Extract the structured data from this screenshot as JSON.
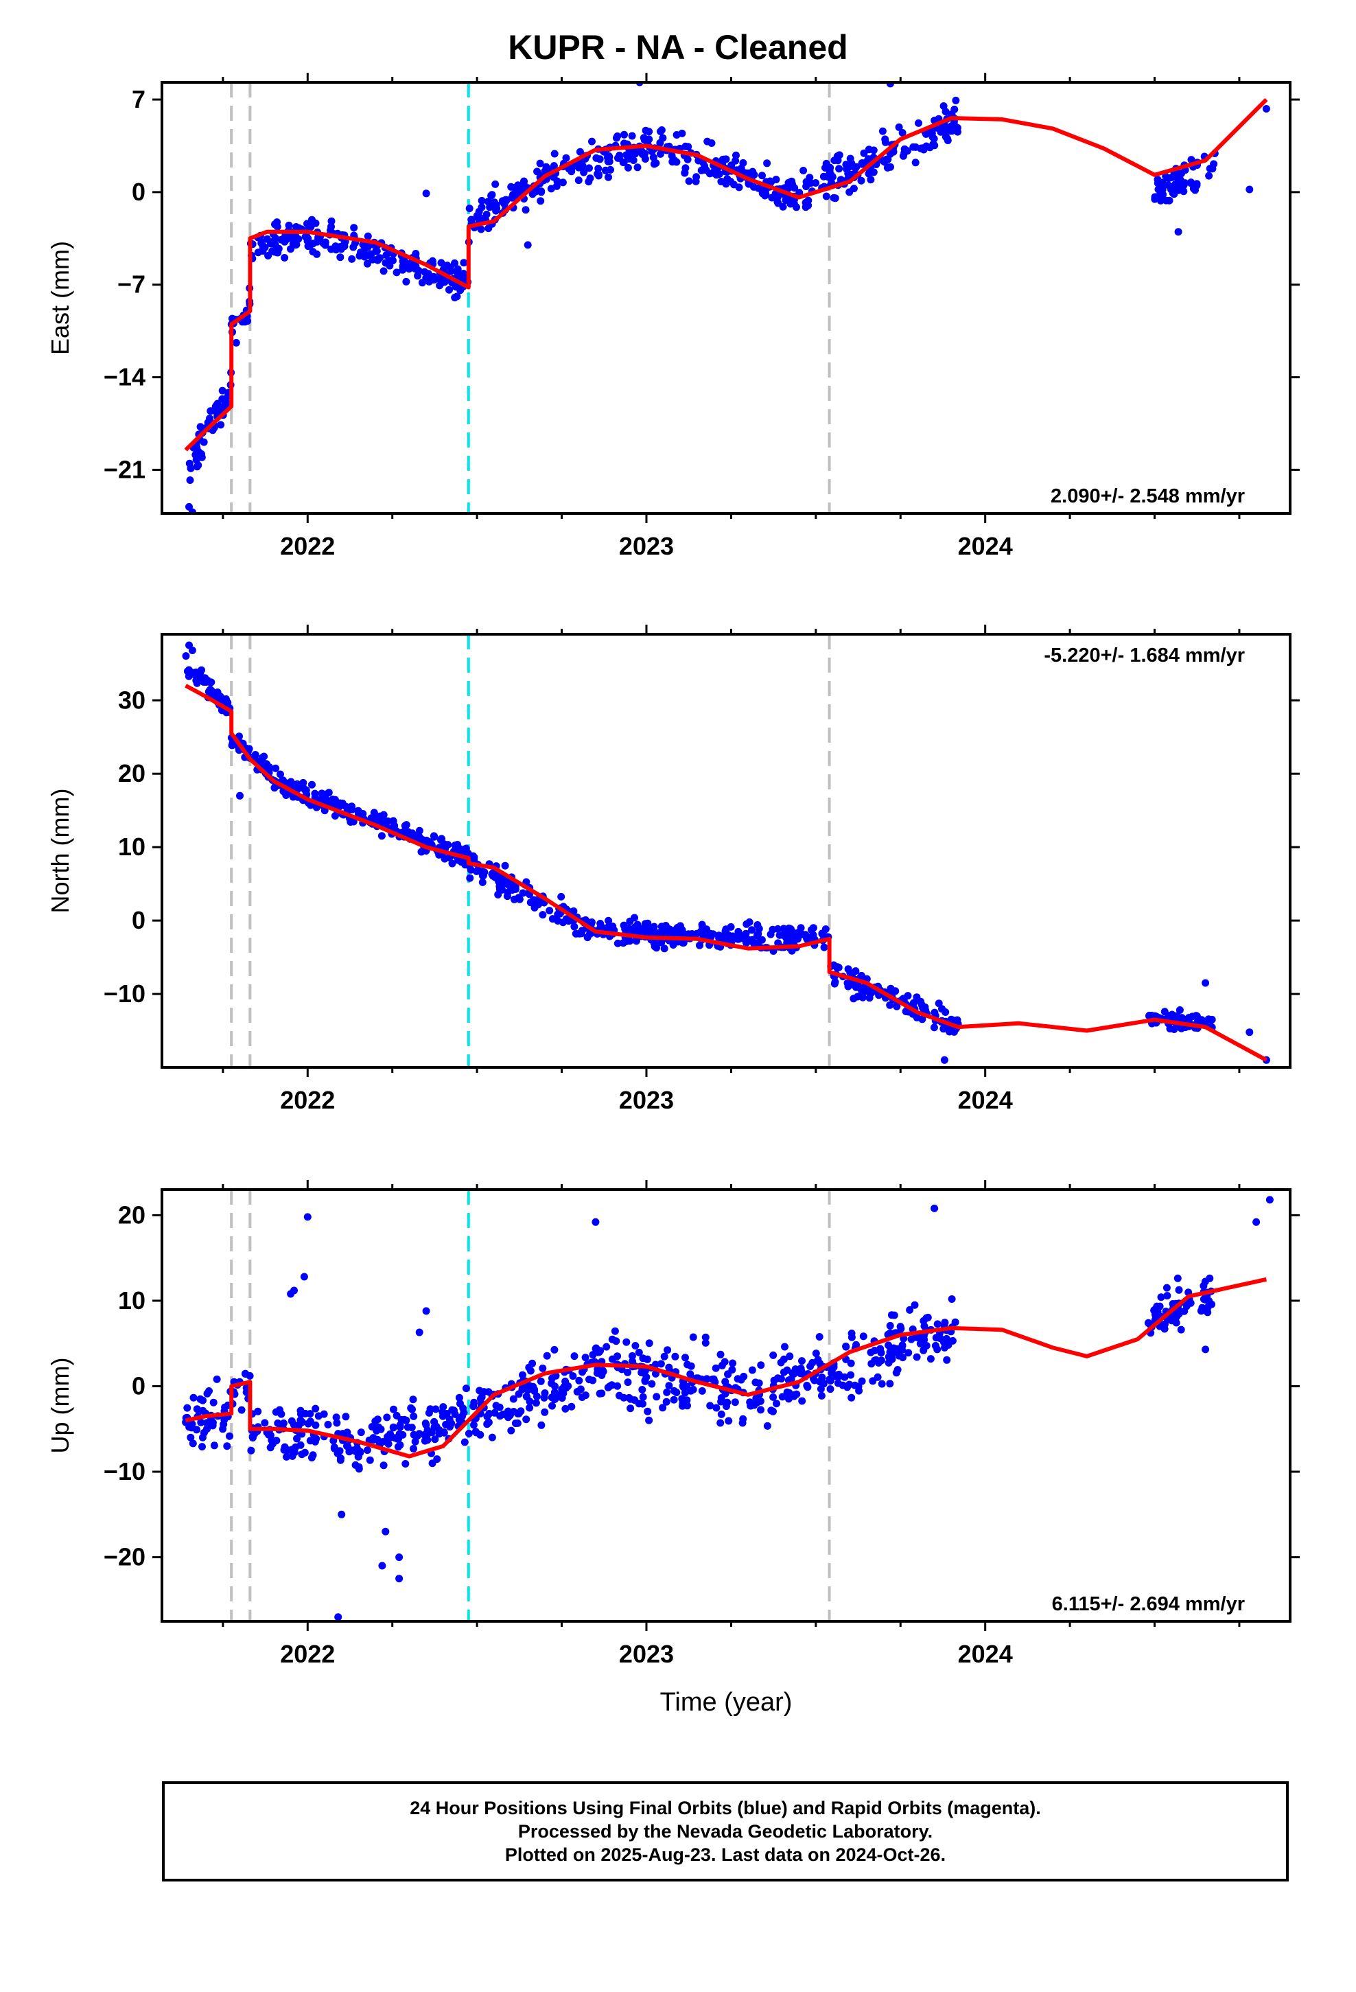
{
  "figure": {
    "title": "KUPR  - NA - Cleaned",
    "xlabel": "Time (year)",
    "footer": [
      "24 Hour Positions Using Final Orbits (blue) and Rapid Orbits (magenta).",
      "Processed by the Nevada Geodetic Laboratory.",
      "Plotted on 2025-Aug-23. Last data on 2024-Oct-26."
    ],
    "colors": {
      "data": "#0000ff",
      "fit": "#ff0000",
      "event_gray": "#bfbfbf",
      "event_cyan": "#00e5ee"
    }
  },
  "chart_data": [
    {
      "type": "scatter",
      "component": "East",
      "ylabel": "East (mm)",
      "ylim": [
        -24.3,
        8.3
      ],
      "yticks": [
        7,
        0,
        -7,
        -14,
        -21
      ],
      "xlim": [
        2021.57,
        2024.9
      ],
      "xticks": [
        2022,
        2023,
        2024
      ],
      "rate_label": "2.090+/- 2.548 mm/yr",
      "rate_position": "bottom-right",
      "events": [
        {
          "x": 2021.775,
          "color": "gray"
        },
        {
          "x": 2021.83,
          "color": "gray"
        },
        {
          "x": 2022.475,
          "color": "cyan"
        },
        {
          "x": 2023.54,
          "color": "gray"
        }
      ],
      "fit": {
        "color": "red",
        "x": [
          2021.64,
          2021.7,
          2021.775,
          2021.775,
          2021.83,
          2021.83,
          2021.88,
          2022.0,
          2022.2,
          2022.35,
          2022.475,
          2022.475,
          2022.55,
          2022.7,
          2022.85,
          2023.0,
          2023.15,
          2023.3,
          2023.45,
          2023.6,
          2023.75,
          2023.9,
          2024.05,
          2024.2,
          2024.35,
          2024.5,
          2024.65,
          2024.83
        ],
        "y": [
          -19.5,
          -18.0,
          -16.2,
          -10.0,
          -9.0,
          -3.5,
          -3.0,
          -3.0,
          -3.8,
          -5.5,
          -7.2,
          -2.6,
          -2.2,
          1.2,
          3.2,
          3.5,
          2.8,
          1.0,
          -0.4,
          0.8,
          4.0,
          5.6,
          5.5,
          4.8,
          3.3,
          1.3,
          2.4,
          7.0
        ]
      },
      "data": {
        "color": "blue",
        "segments": [
          {
            "x": [
              2021.64,
              2021.775
            ],
            "y": [
              -21.5,
              -14.5
            ],
            "n": 55,
            "noise": 1.3
          },
          {
            "x": [
              2021.775,
              2021.83
            ],
            "y": [
              -10.5,
              -8.6
            ],
            "n": 20,
            "noise": 1.2
          },
          {
            "x": [
              2021.83,
              2022.0
            ],
            "y": [
              -4.5,
              -3.0
            ],
            "n": 55,
            "noise": 1.3
          },
          {
            "x": [
              2022.0,
              2022.475
            ],
            "y": [
              -3.0,
              -6.8
            ],
            "n": 155,
            "noise": 1.3
          },
          {
            "x": [
              2022.475,
              2022.7
            ],
            "y": [
              -2.4,
              1.2
            ],
            "n": 75,
            "noise": 1.3
          },
          {
            "x": [
              2022.7,
              2023.0
            ],
            "y": [
              1.2,
              3.5
            ],
            "n": 100,
            "noise": 1.4
          },
          {
            "x": [
              2023.0,
              2023.45
            ],
            "y": [
              3.5,
              -0.4
            ],
            "n": 140,
            "noise": 1.5
          },
          {
            "x": [
              2023.45,
              2023.92
            ],
            "y": [
              -0.4,
              5.6
            ],
            "n": 150,
            "noise": 1.5
          },
          {
            "x": [
              2024.5,
              2024.68
            ],
            "y": [
              0.0,
              2.0
            ],
            "n": 60,
            "noise": 1.2
          }
        ],
        "points": [
          [
            2021.65,
            -23.8
          ],
          [
            2021.66,
            -24.2
          ],
          [
            2022.35,
            -0.1
          ],
          [
            2022.98,
            8.3
          ],
          [
            2023.72,
            8.2
          ],
          [
            2024.78,
            0.2
          ],
          [
            2024.83,
            6.3
          ],
          [
            2024.57,
            -3.0
          ],
          [
            2022.65,
            -4.0
          ]
        ]
      }
    },
    {
      "type": "scatter",
      "component": "North",
      "ylabel": "North (mm)",
      "ylim": [
        -20,
        39
      ],
      "yticks": [
        30,
        20,
        10,
        0,
        -10
      ],
      "xlim": [
        2021.57,
        2024.9
      ],
      "xticks": [
        2022,
        2023,
        2024
      ],
      "rate_label": "-5.220+/- 1.684 mm/yr",
      "rate_position": "top-right",
      "events": [
        {
          "x": 2021.775,
          "color": "gray"
        },
        {
          "x": 2021.83,
          "color": "gray"
        },
        {
          "x": 2022.475,
          "color": "cyan"
        },
        {
          "x": 2023.54,
          "color": "gray"
        }
      ],
      "fit": {
        "color": "red",
        "x": [
          2021.64,
          2021.7,
          2021.775,
          2021.775,
          2021.83,
          2021.9,
          2022.0,
          2022.2,
          2022.35,
          2022.475,
          2022.475,
          2022.55,
          2022.7,
          2022.85,
          2023.0,
          2023.15,
          2023.3,
          2023.45,
          2023.54,
          2023.54,
          2023.65,
          2023.8,
          2023.92,
          2024.1,
          2024.3,
          2024.5,
          2024.65,
          2024.83
        ],
        "y": [
          32.0,
          30.5,
          28.5,
          25.5,
          22.0,
          19.0,
          16.5,
          13.0,
          10.0,
          8.5,
          7.8,
          7.2,
          3.0,
          -1.5,
          -2.3,
          -2.5,
          -3.8,
          -3.5,
          -2.5,
          -7.0,
          -8.5,
          -12.5,
          -14.5,
          -14.0,
          -15.0,
          -13.5,
          -14.5,
          -19.0
        ]
      },
      "data": {
        "color": "blue",
        "segments": [
          {
            "x": [
              2021.64,
              2021.775
            ],
            "y": [
              35.0,
              28.5
            ],
            "n": 50,
            "noise": 1.2
          },
          {
            "x": [
              2021.775,
              2021.9
            ],
            "y": [
              25.0,
              20.0
            ],
            "n": 45,
            "noise": 1.4
          },
          {
            "x": [
              2021.9,
              2022.475
            ],
            "y": [
              19.0,
              8.5
            ],
            "n": 200,
            "noise": 1.6
          },
          {
            "x": [
              2022.475,
              2022.85
            ],
            "y": [
              7.8,
              -1.5
            ],
            "n": 120,
            "noise": 1.6
          },
          {
            "x": [
              2022.85,
              2023.54
            ],
            "y": [
              -1.5,
              -2.5
            ],
            "n": 230,
            "noise": 1.6
          },
          {
            "x": [
              2023.54,
              2023.92
            ],
            "y": [
              -7.0,
              -14.5
            ],
            "n": 120,
            "noise": 1.7
          },
          {
            "x": [
              2024.48,
              2024.67
            ],
            "y": [
              -13.5,
              -14.0
            ],
            "n": 70,
            "noise": 1.1
          }
        ],
        "points": [
          [
            2021.65,
            37.5
          ],
          [
            2021.66,
            36.8
          ],
          [
            2023.88,
            -19.0
          ],
          [
            2024.78,
            -15.2
          ],
          [
            2024.83,
            -19.0
          ],
          [
            2024.65,
            -8.5
          ],
          [
            2021.8,
            17.0
          ]
        ]
      }
    },
    {
      "type": "scatter",
      "component": "Up",
      "ylabel": "Up (mm)",
      "ylim": [
        -27.5,
        23
      ],
      "yticks": [
        20,
        10,
        0,
        -10,
        -20
      ],
      "xlim": [
        2021.57,
        2024.9
      ],
      "xticks": [
        2022,
        2023,
        2024
      ],
      "rate_label": "6.115+/- 2.694 mm/yr",
      "rate_position": "bottom-right",
      "events": [
        {
          "x": 2021.775,
          "color": "gray"
        },
        {
          "x": 2021.83,
          "color": "gray"
        },
        {
          "x": 2022.475,
          "color": "cyan"
        },
        {
          "x": 2023.54,
          "color": "gray"
        }
      ],
      "fit": {
        "color": "red",
        "x": [
          2021.64,
          2021.7,
          2021.775,
          2021.775,
          2021.83,
          2021.83,
          2021.9,
          2022.0,
          2022.15,
          2022.3,
          2022.4,
          2022.475,
          2022.55,
          2022.7,
          2022.85,
          2023.0,
          2023.15,
          2023.3,
          2023.45,
          2023.6,
          2023.75,
          2023.9,
          2024.05,
          2024.2,
          2024.3,
          2024.45,
          2024.6,
          2024.83
        ],
        "y": [
          -4.0,
          -3.5,
          -3.2,
          0.0,
          0.5,
          -5.0,
          -5.0,
          -5.2,
          -6.5,
          -8.2,
          -7.0,
          -4.0,
          -1.0,
          1.5,
          2.5,
          2.3,
          0.5,
          -1.0,
          0.5,
          4.0,
          6.0,
          6.8,
          6.6,
          4.5,
          3.5,
          5.5,
          10.5,
          12.5
        ]
      },
      "data": {
        "color": "blue",
        "segments": [
          {
            "x": [
              2021.64,
              2021.775
            ],
            "y": [
              -4.0,
              -3.2
            ],
            "n": 45,
            "noise": 3.0
          },
          {
            "x": [
              2021.775,
              2021.83
            ],
            "y": [
              0.0,
              0.5
            ],
            "n": 15,
            "noise": 3.0
          },
          {
            "x": [
              2021.83,
              2022.15
            ],
            "y": [
              -5.0,
              -6.5
            ],
            "n": 100,
            "noise": 3.3
          },
          {
            "x": [
              2022.15,
              2022.475
            ],
            "y": [
              -6.5,
              -4.0
            ],
            "n": 105,
            "noise": 3.3
          },
          {
            "x": [
              2022.475,
              2022.85
            ],
            "y": [
              -4.0,
              2.5
            ],
            "n": 120,
            "noise": 3.8
          },
          {
            "x": [
              2022.85,
              2023.3
            ],
            "y": [
              2.5,
              -1.0
            ],
            "n": 150,
            "noise": 4.0
          },
          {
            "x": [
              2023.3,
              2023.92
            ],
            "y": [
              -1.0,
              6.8
            ],
            "n": 190,
            "noise": 3.8
          },
          {
            "x": [
              2024.48,
              2024.67
            ],
            "y": [
              7.5,
              11.0
            ],
            "n": 75,
            "noise": 2.8
          }
        ],
        "points": [
          [
            2022.0,
            19.8
          ],
          [
            2021.95,
            10.8
          ],
          [
            2021.96,
            11.2
          ],
          [
            2022.09,
            -27.0
          ],
          [
            2022.22,
            -21.0
          ],
          [
            2022.27,
            -22.5
          ],
          [
            2022.27,
            -20.0
          ],
          [
            2022.23,
            -17.0
          ],
          [
            2022.85,
            19.2
          ],
          [
            2023.85,
            20.8
          ],
          [
            2024.8,
            19.2
          ],
          [
            2024.84,
            21.8
          ],
          [
            2022.33,
            6.3
          ],
          [
            2022.35,
            8.8
          ],
          [
            2021.99,
            12.8
          ],
          [
            2024.65,
            4.3
          ],
          [
            2022.1,
            -15.0
          ]
        ]
      }
    }
  ]
}
